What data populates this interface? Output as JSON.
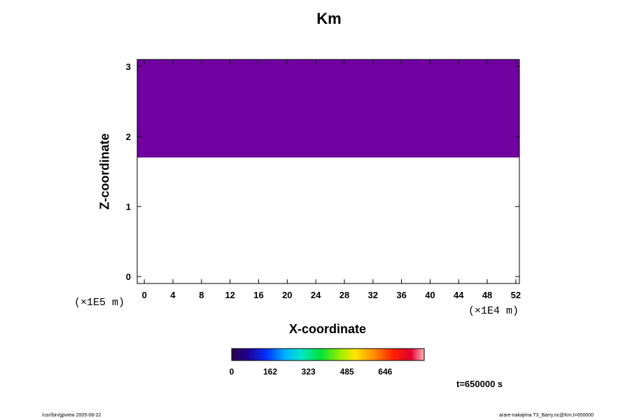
{
  "chart_data": {
    "type": "heatmap",
    "title": "Km",
    "xlabel": "X-coordinate",
    "ylabel": "Z-coordinate",
    "x_unit": "(×1E4 m)",
    "y_unit": "(×1E5 m)",
    "xlim": [
      -1,
      52.5
    ],
    "ylim": [
      -0.1,
      3.1
    ],
    "x_ticks": [
      0,
      4,
      8,
      12,
      16,
      20,
      24,
      28,
      32,
      36,
      40,
      44,
      48,
      52
    ],
    "y_ticks": [
      0,
      1,
      2,
      3
    ],
    "colorbar": {
      "min": 0,
      "max": 810,
      "ticks": [
        0,
        162,
        323,
        485,
        646
      ]
    },
    "upper_layer": {
      "z_min": 1.7,
      "z_max": 3.1,
      "value": 0
    },
    "time_label": "t=650000 s"
  },
  "footer": {
    "left": "/usr/bin/gpview 2005-08-22",
    "right": "arare-nakajima T3_Barry.nc@Km,t=650000"
  },
  "colors": {
    "upper_layer": "#7000a0",
    "axis": "#000000"
  }
}
